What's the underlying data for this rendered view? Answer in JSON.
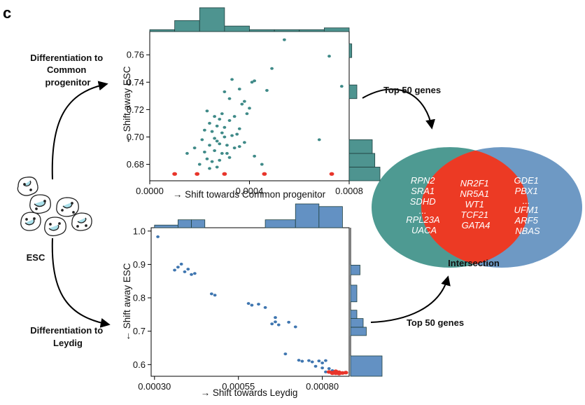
{
  "panel_label": "c",
  "esc_label": "ESC",
  "diff_common_lines": [
    "Differentiation to",
    "Common",
    "progenitor"
  ],
  "diff_leydig_lines": [
    "Differentiation to",
    "Leydig"
  ],
  "top_genes_label_1": "Top 50 genes",
  "top_genes_label_2": "Top 50 genes",
  "intersection_label": "Intersection",
  "venn": {
    "left_genes": [
      "RPN2",
      "SRA1",
      "SDHD",
      "...",
      "RPL23A",
      "UACA"
    ],
    "center_genes": [
      "NR2F1",
      "NR5A1",
      "WT1",
      "TCF21",
      "GATA4"
    ],
    "right_genes": [
      "GDE1",
      "PBX1",
      "...",
      "UFM1",
      "ARF5",
      "NBAS"
    ],
    "colors": {
      "left": "#4e9a92",
      "right": "#6e99c4",
      "center": "#ec3a24"
    }
  },
  "colors": {
    "teal": "#3f8a88",
    "teal_bar": "#4e9490",
    "blue": "#3f76b0",
    "blue_bar": "#6391c3",
    "red": "#e8352a"
  },
  "chart_data": [
    {
      "type": "scatter",
      "title": "",
      "xlabel": "→ Shift towards Common progenitor",
      "ylabel": "← Shift away ESC",
      "xlim": [
        0.0,
        0.0008
      ],
      "ylim": [
        0.668,
        0.777
      ],
      "xticks": [
        0.0,
        0.0004,
        0.0008
      ],
      "xtick_labels": [
        "0.0000",
        "0.0004",
        "0.0008"
      ],
      "yticks": [
        0.68,
        0.7,
        0.72,
        0.74,
        0.76
      ],
      "ytick_labels": [
        "0.68",
        "0.70",
        "0.72",
        "0.74",
        "0.76"
      ],
      "series": [
        {
          "name": "teal",
          "points": [
            [
              0.00054,
              0.771
            ],
            [
              0.00072,
              0.759
            ],
            [
              0.00077,
              0.737
            ],
            [
              0.00049,
              0.75
            ],
            [
              0.00033,
              0.742
            ],
            [
              0.00042,
              0.741
            ],
            [
              0.00041,
              0.74
            ],
            [
              0.00036,
              0.735
            ],
            [
              0.00047,
              0.734
            ],
            [
              0.0003,
              0.733
            ],
            [
              0.00032,
              0.728
            ],
            [
              0.00038,
              0.726
            ],
            [
              0.00037,
              0.724
            ],
            [
              0.0004,
              0.721
            ],
            [
              0.00023,
              0.719
            ],
            [
              0.00029,
              0.717
            ],
            [
              0.00026,
              0.715
            ],
            [
              0.00028,
              0.713
            ],
            [
              0.00034,
              0.715
            ],
            [
              0.00032,
              0.712
            ],
            [
              0.00039,
              0.717
            ],
            [
              0.00024,
              0.71
            ],
            [
              0.00027,
              0.708
            ],
            [
              0.0003,
              0.707
            ],
            [
              0.00036,
              0.706
            ],
            [
              0.00022,
              0.705
            ],
            [
              0.00025,
              0.704
            ],
            [
              0.00029,
              0.703
            ],
            [
              0.00033,
              0.701
            ],
            [
              0.00035,
              0.702
            ],
            [
              0.0003,
              0.7
            ],
            [
              0.00026,
              0.699
            ],
            [
              0.00021,
              0.698
            ],
            [
              0.00027,
              0.697
            ],
            [
              0.00028,
              0.695
            ],
            [
              0.00024,
              0.694
            ],
            [
              0.00031,
              0.694
            ],
            [
              0.00038,
              0.696
            ],
            [
              0.00034,
              0.692
            ],
            [
              0.00018,
              0.692
            ],
            [
              0.00015,
              0.688
            ],
            [
              0.00022,
              0.689
            ],
            [
              0.00026,
              0.69
            ],
            [
              0.00029,
              0.688
            ],
            [
              0.00031,
              0.688
            ],
            [
              0.00023,
              0.684
            ],
            [
              0.00028,
              0.683
            ],
            [
              0.00025,
              0.682
            ],
            [
              0.00032,
              0.685
            ],
            [
              0.00042,
              0.686
            ],
            [
              0.0002,
              0.68
            ],
            [
              0.00027,
              0.678
            ],
            [
              0.00024,
              0.677
            ],
            [
              0.00045,
              0.68
            ],
            [
              0.00068,
              0.698
            ],
            [
              0.00036,
              0.693
            ]
          ]
        },
        {
          "name": "red",
          "points": [
            [
              0.0001,
              0.673
            ],
            [
              0.00019,
              0.673
            ],
            [
              0.0003,
              0.673
            ],
            [
              0.00046,
              0.673
            ],
            [
              0.00073,
              0.673
            ]
          ]
        }
      ],
      "histogram_x": {
        "edges": [
          0.0,
          0.0001,
          0.0002,
          0.0003,
          0.0004,
          0.0005,
          0.0006,
          0.0007,
          0.0008
        ],
        "counts": [
          1,
          6,
          13,
          3,
          1,
          1,
          1,
          2
        ]
      },
      "histogram_y": {
        "edges": [
          0.668,
          0.678,
          0.688,
          0.698,
          0.708,
          0.718,
          0.728,
          0.738,
          0.748,
          0.758,
          0.768,
          0.777
        ],
        "counts": [
          12,
          10,
          9,
          0,
          0,
          0,
          3,
          0,
          0,
          1,
          0
        ]
      }
    },
    {
      "type": "scatter",
      "title": "",
      "xlabel": "→ Shift towards Leydig",
      "ylabel": "← Shift away ESC",
      "xlim": [
        0.00029,
        0.00088
      ],
      "ylim": [
        0.565,
        1.01
      ],
      "xticks": [
        0.0003,
        0.00055,
        0.0008
      ],
      "xtick_labels": [
        "0.00030",
        "0.00055",
        "0.00080"
      ],
      "yticks": [
        0.6,
        0.7,
        0.8,
        0.9,
        1.0
      ],
      "ytick_labels": [
        "0.6",
        "0.7",
        "0.8",
        "0.9",
        "1.0"
      ],
      "series": [
        {
          "name": "blue",
          "points": [
            [
              0.00031,
              0.983
            ],
            [
              0.00036,
              0.883
            ],
            [
              0.00037,
              0.892
            ],
            [
              0.00038,
              0.901
            ],
            [
              0.00039,
              0.878
            ],
            [
              0.0004,
              0.886
            ],
            [
              0.00041,
              0.87
            ],
            [
              0.00042,
              0.873
            ],
            [
              0.00047,
              0.812
            ],
            [
              0.00048,
              0.808
            ],
            [
              0.00058,
              0.783
            ],
            [
              0.00059,
              0.778
            ],
            [
              0.00061,
              0.781
            ],
            [
              0.00063,
              0.771
            ],
            [
              0.00065,
              0.722
            ],
            [
              0.00066,
              0.728
            ],
            [
              0.00067,
              0.719
            ],
            [
              0.0007,
              0.727
            ],
            [
              0.00072,
              0.713
            ],
            [
              0.00066,
              0.741
            ],
            [
              0.00069,
              0.632
            ],
            [
              0.00073,
              0.613
            ],
            [
              0.00074,
              0.61
            ],
            [
              0.00076,
              0.612
            ],
            [
              0.00077,
              0.608
            ],
            [
              0.00079,
              0.611
            ],
            [
              0.0008,
              0.605
            ],
            [
              0.00081,
              0.612
            ],
            [
              0.00078,
              0.595
            ],
            [
              0.0008,
              0.59
            ],
            [
              0.00082,
              0.588
            ],
            [
              0.00083,
              0.582
            ],
            [
              0.00081,
              0.578
            ],
            [
              0.00084,
              0.575
            ]
          ]
        },
        {
          "name": "red",
          "points": [
            [
              0.00082,
              0.578
            ],
            [
              0.00083,
              0.576
            ],
            [
              0.00084,
              0.58
            ],
            [
              0.00085,
              0.577
            ],
            [
              0.00086,
              0.575
            ],
            [
              0.00085,
              0.573
            ],
            [
              0.00083,
              0.574
            ],
            [
              0.00087,
              0.576
            ],
            [
              0.00084,
              0.574
            ]
          ]
        }
      ],
      "histogram_x": {
        "edges": [
          0.0003,
          0.00037,
          0.00041,
          0.00045,
          0.00063,
          0.00072,
          0.00079,
          0.00086
        ],
        "counts": [
          1,
          3,
          3,
          0,
          3,
          9,
          8
        ]
      },
      "histogram_y": {
        "edges": [
          0.565,
          0.626,
          0.687,
          0.712,
          0.738,
          0.763,
          0.788,
          0.838,
          0.869,
          0.898
        ],
        "counts": [
          10,
          0,
          5,
          4,
          2,
          0,
          2,
          0,
          3
        ]
      }
    }
  ]
}
